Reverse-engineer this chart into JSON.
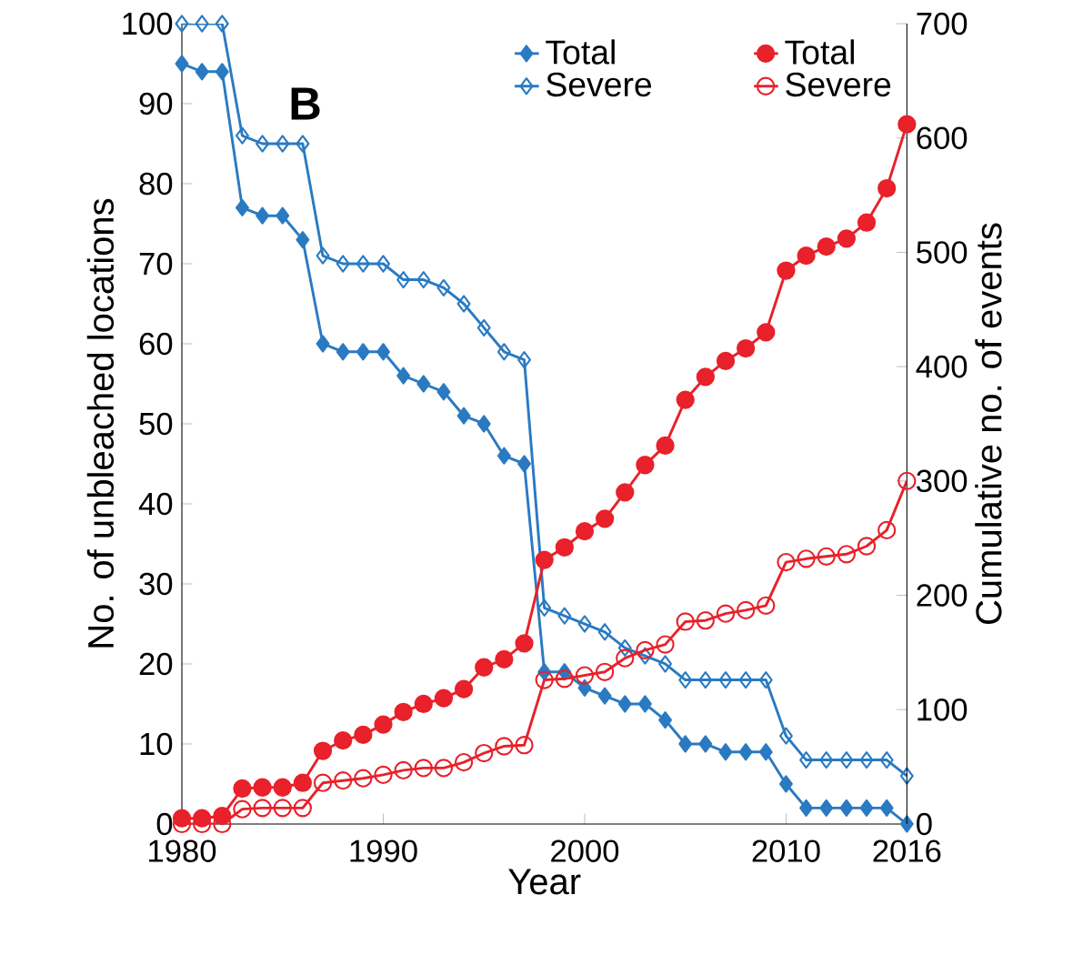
{
  "chart_data": {
    "type": "line",
    "xlabel": "Year",
    "ylabel": "No. of  unbleached locations",
    "y2label": "Cumulative no. of events",
    "annotations": [
      "B"
    ],
    "x": [
      1980,
      1981,
      1982,
      1983,
      1984,
      1985,
      1986,
      1987,
      1988,
      1989,
      1990,
      1991,
      1992,
      1993,
      1994,
      1995,
      1996,
      1997,
      1998,
      1999,
      2000,
      2001,
      2002,
      2003,
      2004,
      2005,
      2006,
      2007,
      2008,
      2009,
      2010,
      2011,
      2012,
      2013,
      2014,
      2015,
      2016
    ],
    "series": [
      {
        "name": "Total",
        "color": "#2a7ac2",
        "marker": "diamond",
        "values": [
          95,
          94,
          94,
          77,
          76,
          76,
          73,
          60,
          59,
          59,
          59,
          56,
          55,
          54,
          51,
          50,
          46,
          45,
          19,
          19,
          17,
          16,
          15,
          15,
          13,
          10,
          10,
          9,
          9,
          9,
          5,
          2,
          2,
          2,
          2,
          2,
          0
        ]
      },
      {
        "name": "Severe",
        "color": "#2a7ac2",
        "marker": "diamond",
        "values": [
          100,
          100,
          100,
          86,
          85,
          85,
          85,
          71,
          70,
          70,
          70,
          68,
          68,
          67,
          65,
          62,
          59,
          58,
          27,
          26,
          25,
          24,
          22,
          21,
          20,
          18,
          18,
          18,
          18,
          18,
          11,
          8,
          8,
          8,
          8,
          8,
          6
        ]
      },
      {
        "name": "Total",
        "color": "#e8212a",
        "marker": "circle",
        "axis": "y2",
        "values": [
          5,
          5,
          7,
          31,
          32,
          32,
          36,
          64,
          73,
          78,
          87,
          98,
          105,
          110,
          118,
          137,
          144,
          158,
          231,
          242,
          256,
          267,
          290,
          314,
          331,
          371,
          391,
          405,
          416,
          430,
          484,
          497,
          505,
          512,
          526,
          556,
          612
        ]
      },
      {
        "name": "Severe",
        "color": "#e8212a",
        "marker": "circle",
        "axis": "y2",
        "values": [
          0,
          0,
          0,
          13,
          14,
          14,
          14,
          36,
          38,
          40,
          43,
          47,
          49,
          49,
          54,
          62,
          68,
          69,
          126,
          127,
          130,
          133,
          145,
          152,
          157,
          177,
          178,
          184,
          187,
          191,
          229,
          232,
          234,
          236,
          243,
          257,
          300
        ]
      }
    ],
    "xlim": [
      1980,
      2016
    ],
    "xticks": [
      1980,
      1990,
      2000,
      2010,
      2016
    ],
    "ylim": [
      0,
      100
    ],
    "yticks": [
      0,
      10,
      20,
      30,
      40,
      50,
      60,
      70,
      80,
      90,
      100
    ],
    "y2lim": [
      0,
      700
    ],
    "y2ticks": [
      0,
      100,
      200,
      300,
      400,
      500,
      600,
      700
    ],
    "grid": false,
    "legend": "top right",
    "line_style": "solid"
  }
}
